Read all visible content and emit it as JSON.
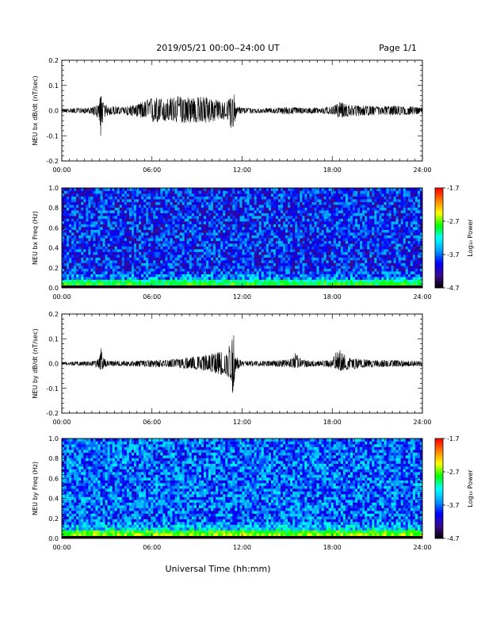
{
  "header": {
    "title": "2019/05/21  00:00‒24:00 UT",
    "page": "Page 1/1"
  },
  "footer": {
    "xlabel": "Universal Time (hh:mm)"
  },
  "colors": {
    "trace": "#000000",
    "spectrogram_scale": [
      "#000000",
      "#3a0a8a",
      "#0000ff",
      "#00a0ff",
      "#00ffff",
      "#00ff00",
      "#ffff00",
      "#ff8000",
      "#ff0000"
    ]
  },
  "chart_data": [
    {
      "type": "line",
      "ylabel": "NEU bx dB/dt (nT/sec)",
      "xlim": [
        "00:00",
        "24:00"
      ],
      "ylim": [
        -0.2,
        0.2
      ],
      "x_ticks": [
        "00:00",
        "06:00",
        "12:00",
        "18:00",
        "24:00"
      ],
      "y_ticks": [
        "-0.2",
        "-0.1",
        "0.0",
        "0.1",
        "0.2"
      ],
      "envelope": {
        "x_hours": [
          0,
          1,
          2,
          2.5,
          2.6,
          2.7,
          3,
          4,
          5,
          5.5,
          6,
          7,
          8,
          9,
          9.5,
          10,
          10.5,
          11,
          11.2,
          11.4,
          11.6,
          12,
          13,
          14,
          15,
          16,
          17,
          18,
          18.5,
          19,
          20,
          21,
          22,
          23,
          24
        ],
        "upper": [
          0.008,
          0.01,
          0.012,
          0.03,
          0.085,
          0.04,
          0.02,
          0.015,
          0.025,
          0.04,
          0.055,
          0.05,
          0.06,
          0.055,
          0.06,
          0.05,
          0.04,
          0.035,
          0.055,
          0.085,
          0.02,
          0.012,
          0.01,
          0.01,
          0.015,
          0.012,
          0.012,
          0.015,
          0.035,
          0.025,
          0.02,
          0.018,
          0.02,
          0.018,
          0.012
        ],
        "lower": [
          -0.008,
          -0.01,
          -0.012,
          -0.04,
          -0.14,
          -0.05,
          -0.02,
          -0.015,
          -0.025,
          -0.035,
          -0.05,
          -0.045,
          -0.05,
          -0.05,
          -0.055,
          -0.045,
          -0.04,
          -0.035,
          -0.06,
          -0.09,
          -0.025,
          -0.012,
          -0.01,
          -0.01,
          -0.015,
          -0.012,
          -0.012,
          -0.015,
          -0.03,
          -0.025,
          -0.02,
          -0.018,
          -0.02,
          -0.018,
          -0.012
        ]
      }
    },
    {
      "type": "heatmap",
      "ylabel": "NEU bx Freq (Hz)",
      "xlim": [
        "00:00",
        "24:00"
      ],
      "ylim": [
        0.0,
        1.0
      ],
      "x_ticks": [
        "00:00",
        "06:00",
        "12:00",
        "18:00",
        "24:00"
      ],
      "y_ticks": [
        "0.0",
        "0.2",
        "0.4",
        "0.6",
        "0.8",
        "1.0"
      ],
      "colorbar": {
        "label": "Log₁₀ Power",
        "ticks": [
          "-1.7",
          "-2.7",
          "-3.7",
          "-4.7"
        ],
        "range": [
          -4.7,
          -1.7
        ]
      },
      "background_level": -3.9,
      "low_freq_level": -2.6
    },
    {
      "type": "line",
      "ylabel": "NEU by dB/dt (nT/sec)",
      "xlim": [
        "00:00",
        "24:00"
      ],
      "ylim": [
        -0.2,
        0.2
      ],
      "x_ticks": [
        "00:00",
        "06:00",
        "12:00",
        "18:00",
        "24:00"
      ],
      "y_ticks": [
        "-0.2",
        "-0.1",
        "0.0",
        "0.1",
        "0.2"
      ],
      "envelope": {
        "x_hours": [
          0,
          1,
          2,
          2.5,
          2.6,
          2.7,
          3,
          4,
          5,
          6,
          7,
          8,
          9,
          10,
          10.5,
          11,
          11.2,
          11.4,
          11.6,
          12,
          13,
          14,
          15,
          15.5,
          16,
          17,
          18,
          18.4,
          19,
          20,
          21,
          22,
          23,
          24
        ],
        "upper": [
          0.006,
          0.008,
          0.01,
          0.02,
          0.075,
          0.03,
          0.012,
          0.01,
          0.012,
          0.015,
          0.015,
          0.025,
          0.03,
          0.045,
          0.055,
          0.06,
          0.09,
          0.15,
          0.03,
          0.012,
          0.01,
          0.012,
          0.015,
          0.045,
          0.015,
          0.012,
          0.015,
          0.065,
          0.025,
          0.018,
          0.015,
          0.015,
          0.012,
          0.01
        ],
        "lower": [
          -0.006,
          -0.008,
          -0.01,
          -0.02,
          -0.045,
          -0.025,
          -0.012,
          -0.01,
          -0.012,
          -0.015,
          -0.015,
          -0.02,
          -0.025,
          -0.035,
          -0.045,
          -0.05,
          -0.08,
          -0.13,
          -0.03,
          -0.012,
          -0.01,
          -0.012,
          -0.015,
          -0.02,
          -0.015,
          -0.012,
          -0.015,
          -0.03,
          -0.025,
          -0.018,
          -0.015,
          -0.015,
          -0.012,
          -0.01
        ]
      }
    },
    {
      "type": "heatmap",
      "ylabel": "NEU by Freq (Hz)",
      "xlim": [
        "00:00",
        "24:00"
      ],
      "ylim": [
        0.0,
        1.0
      ],
      "x_ticks": [
        "00:00",
        "06:00",
        "12:00",
        "18:00",
        "24:00"
      ],
      "y_ticks": [
        "0.0",
        "0.2",
        "0.4",
        "0.6",
        "0.8",
        "1.0"
      ],
      "colorbar": {
        "label": "Log₁₀ Power",
        "ticks": [
          "-1.7",
          "-2.7",
          "-3.7",
          "-4.7"
        ],
        "range": [
          -4.7,
          -1.7
        ]
      },
      "background_level": -3.7,
      "low_freq_level": -2.4
    }
  ]
}
